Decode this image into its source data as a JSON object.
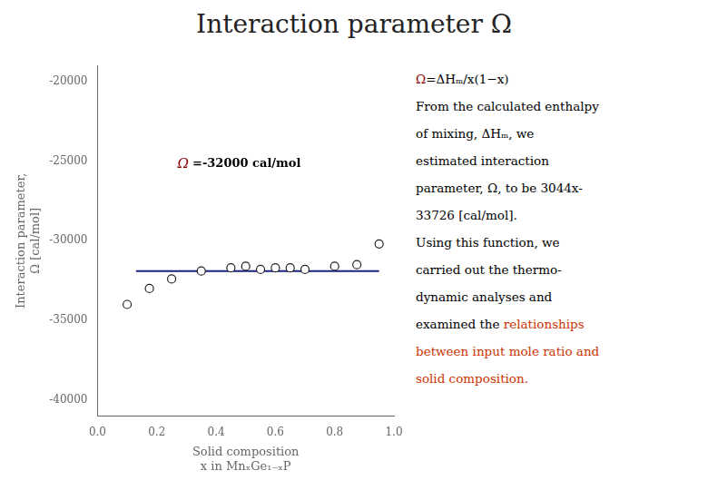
{
  "chart_data": {
    "type": "scatter",
    "title": "Interaction parameter Ω",
    "xlabel": "Solid composition\nx in MnₓGe₁₋ₓP",
    "ylabel": "Interaction parameter,\nΩ [cal/mol]",
    "series": [
      {
        "type": "scatter",
        "marker": "circle",
        "color": "#222222",
        "x": [
          0.1,
          0.175,
          0.25,
          0.35,
          0.45,
          0.5,
          0.55,
          0.6,
          0.65,
          0.7,
          0.8,
          0.875,
          0.95
        ],
        "values": [
          -34000,
          -33000,
          -32400,
          -31900,
          -31700,
          -31600,
          -31800,
          -31700,
          -31700,
          -31800,
          -31600,
          -31500,
          -30200
        ]
      },
      {
        "type": "line",
        "line_style": "solid",
        "color": "#1a237e",
        "x": [
          0.13,
          0.95
        ],
        "values": [
          -31900,
          -31900
        ]
      }
    ],
    "xlim": [
      0.0,
      1.0
    ],
    "ylim": [
      -41000,
      -19000
    ],
    "xticks": [
      {
        "value": 0.0,
        "label": "0.0"
      },
      0.2,
      0.4,
      0.6,
      0.8,
      {
        "value": 1.0,
        "label": "1.0"
      }
    ],
    "yticks": [
      -40000,
      -35000,
      -30000,
      -25000,
      -20000
    ],
    "grid": false,
    "annotations": [
      {
        "x": 0.27,
        "y": -25200,
        "parts": [
          {
            "text": "Ω",
            "color": "#8b0000"
          },
          {
            "text": "=-32000 cal/mol",
            "color": "black"
          }
        ]
      }
    ],
    "notes": [
      [
        {
          "text": "Ω",
          "color": "#8b0000"
        },
        {
          "text": "=ΔHₘ/x(1−x)",
          "color": "black"
        }
      ],
      [
        {
          "text": "From the calculated enthalpy",
          "color": "black"
        }
      ],
      [
        {
          "text": "of mixing, ΔHₘ, we",
          "color": "black"
        }
      ],
      [
        {
          "text": "estimated interaction",
          "color": "black"
        }
      ],
      [
        {
          "text": "parameter, Ω, to be 3044x-",
          "color": "black"
        }
      ],
      [
        {
          "text": "33726 [cal/mol].",
          "color": "black"
        }
      ],
      [
        {
          "text": "Using this function, we",
          "color": "black"
        }
      ],
      [
        {
          "text": "carried out the thermo-",
          "color": "black"
        }
      ],
      [
        {
          "text": "dynamic analyses and",
          "color": "black"
        }
      ],
      [
        {
          "text": "examined the ",
          "color": "black"
        },
        {
          "text": "relationships",
          "color": "#cc3300"
        }
      ],
      [
        {
          "text": "between input mole ratio and",
          "color": "#cc3300"
        }
      ],
      [
        {
          "text": "solid composition.",
          "color": "#cc3300"
        }
      ]
    ]
  }
}
